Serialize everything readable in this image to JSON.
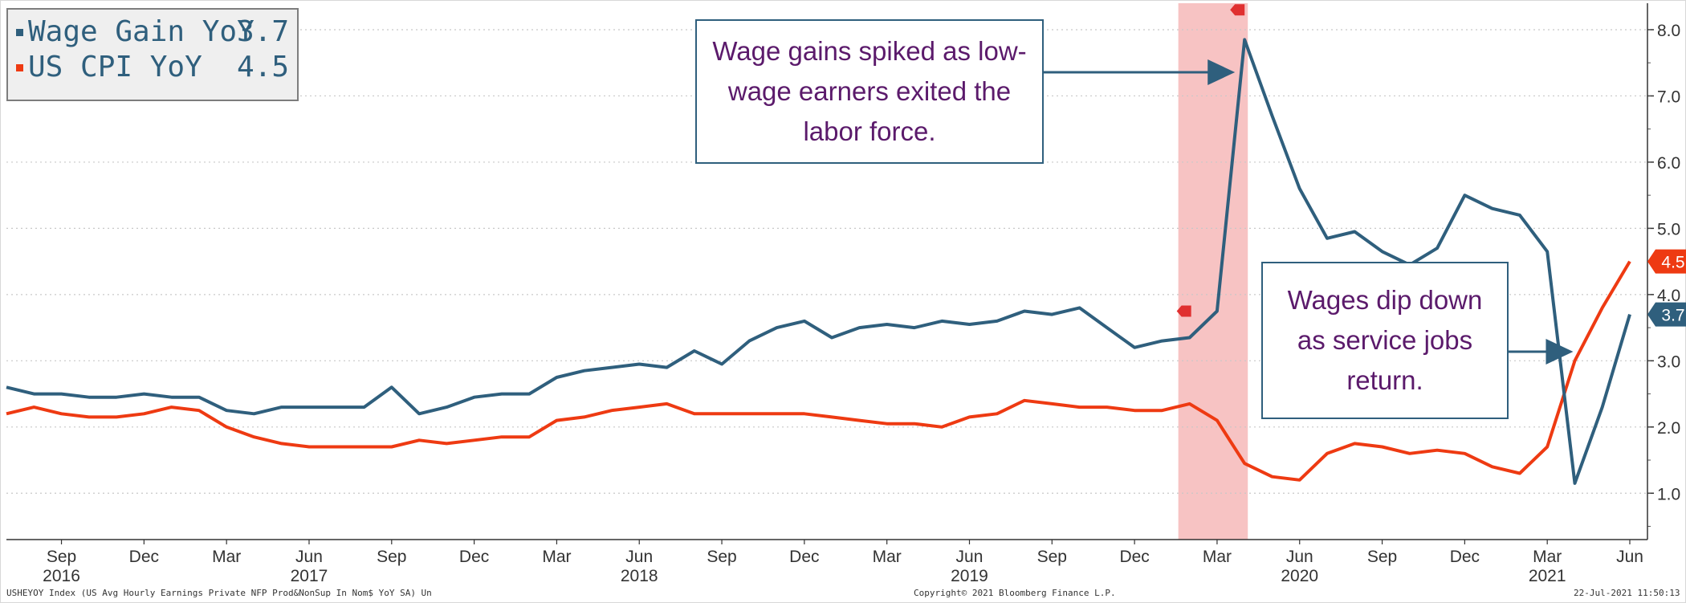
{
  "chart_data": {
    "type": "line",
    "legend": {
      "placement": "top-left",
      "entries": [
        {
          "label": "Wage Gain YoY",
          "value": "3.7",
          "color": "#2f5f7d"
        },
        {
          "label": "US CPI YoY",
          "value": "4.5",
          "color": "#ee3a12"
        }
      ]
    },
    "ylim": [
      0.3,
      8.4
    ],
    "y_ticks": [
      1.0,
      2.0,
      3.0,
      4.0,
      5.0,
      6.0,
      7.0,
      8.0
    ],
    "y_tick_labels": [
      "1.0",
      "2.0",
      "3.0",
      "4.0",
      "5.0",
      "6.0",
      "7.0",
      "8.0"
    ],
    "grid": true,
    "x_start": "2016-07",
    "x_end": "2021-06",
    "x_ticks": [
      {
        "date": "2016-09",
        "label": "Sep"
      },
      {
        "date": "2016-12",
        "label": "Dec"
      },
      {
        "date": "2017-03",
        "label": "Mar"
      },
      {
        "date": "2017-06",
        "label": "Jun"
      },
      {
        "date": "2017-09",
        "label": "Sep"
      },
      {
        "date": "2017-12",
        "label": "Dec"
      },
      {
        "date": "2018-03",
        "label": "Mar"
      },
      {
        "date": "2018-06",
        "label": "Jun"
      },
      {
        "date": "2018-09",
        "label": "Sep"
      },
      {
        "date": "2018-12",
        "label": "Dec"
      },
      {
        "date": "2019-03",
        "label": "Mar"
      },
      {
        "date": "2019-06",
        "label": "Jun"
      },
      {
        "date": "2019-09",
        "label": "Sep"
      },
      {
        "date": "2019-12",
        "label": "Dec"
      },
      {
        "date": "2020-03",
        "label": "Mar"
      },
      {
        "date": "2020-06",
        "label": "Jun"
      },
      {
        "date": "2020-09",
        "label": "Sep"
      },
      {
        "date": "2020-12",
        "label": "Dec"
      },
      {
        "date": "2021-03",
        "label": "Mar"
      },
      {
        "date": "2021-06",
        "label": "Jun"
      }
    ],
    "year_labels": [
      {
        "date": "2016-09",
        "label": "2016"
      },
      {
        "date": "2017-06",
        "label": "2017"
      },
      {
        "date": "2018-06",
        "label": "2018"
      },
      {
        "date": "2019-06",
        "label": "2019"
      },
      {
        "date": "2020-06",
        "label": "2020"
      },
      {
        "date": "2021-03",
        "label": "2021"
      }
    ],
    "x": [
      "2016-07",
      "2016-08",
      "2016-09",
      "2016-10",
      "2016-11",
      "2016-12",
      "2017-01",
      "2017-02",
      "2017-03",
      "2017-04",
      "2017-05",
      "2017-06",
      "2017-07",
      "2017-08",
      "2017-09",
      "2017-10",
      "2017-11",
      "2017-12",
      "2018-01",
      "2018-02",
      "2018-03",
      "2018-04",
      "2018-05",
      "2018-06",
      "2018-07",
      "2018-08",
      "2018-09",
      "2018-10",
      "2018-11",
      "2018-12",
      "2019-01",
      "2019-02",
      "2019-03",
      "2019-04",
      "2019-05",
      "2019-06",
      "2019-07",
      "2019-08",
      "2019-09",
      "2019-10",
      "2019-11",
      "2019-12",
      "2020-01",
      "2020-02",
      "2020-03",
      "2020-04",
      "2020-05",
      "2020-06",
      "2020-07",
      "2020-08",
      "2020-09",
      "2020-10",
      "2020-11",
      "2020-12",
      "2021-01",
      "2021-02",
      "2021-03",
      "2021-04",
      "2021-05",
      "2021-06"
    ],
    "series": [
      {
        "name": "Wage Gain YoY",
        "color": "#2f5f7d",
        "values": [
          2.6,
          2.5,
          2.5,
          2.45,
          2.45,
          2.5,
          2.45,
          2.45,
          2.25,
          2.2,
          2.3,
          2.3,
          2.3,
          2.3,
          2.6,
          2.2,
          2.3,
          2.45,
          2.5,
          2.5,
          2.75,
          2.85,
          2.9,
          2.95,
          2.9,
          3.15,
          2.95,
          3.3,
          3.5,
          3.6,
          3.35,
          3.5,
          3.55,
          3.5,
          3.6,
          3.55,
          3.6,
          3.75,
          3.7,
          3.8,
          3.5,
          3.2,
          3.3,
          3.35,
          3.75,
          7.85,
          6.7,
          5.6,
          4.85,
          4.95,
          4.65,
          4.45,
          4.7,
          5.5,
          5.3,
          5.2,
          4.65,
          1.15,
          2.3,
          3.7
        ]
      },
      {
        "name": "US CPI YoY",
        "color": "#ee3a12",
        "values": [
          2.2,
          2.3,
          2.2,
          2.15,
          2.15,
          2.2,
          2.3,
          2.25,
          2.0,
          1.85,
          1.75,
          1.7,
          1.7,
          1.7,
          1.7,
          1.8,
          1.75,
          1.8,
          1.85,
          1.85,
          2.1,
          2.15,
          2.25,
          2.3,
          2.35,
          2.2,
          2.2,
          2.2,
          2.2,
          2.2,
          2.15,
          2.1,
          2.05,
          2.05,
          2.0,
          2.15,
          2.2,
          2.4,
          2.35,
          2.3,
          2.3,
          2.25,
          2.25,
          2.35,
          2.1,
          1.45,
          1.25,
          1.2,
          1.6,
          1.75,
          1.7,
          1.6,
          1.65,
          1.6,
          1.4,
          1.3,
          1.7,
          3.0,
          3.8,
          4.5
        ]
      }
    ],
    "shaded_period": {
      "start": "2020-02",
      "end": "2020-04"
    },
    "last_value_tags": [
      {
        "series": "US CPI YoY",
        "label": "4.5",
        "color": "#ee3a12"
      },
      {
        "series": "Wage Gain YoY",
        "label": "3.7",
        "color": "#2f5f7d"
      }
    ],
    "annotations": [
      {
        "lines": [
          "Wage gains spiked as low-",
          "wage earners exited the",
          "labor force."
        ],
        "arrow_to": "2020-04"
      },
      {
        "lines": [
          "Wages dip down",
          "as service jobs",
          "return."
        ],
        "arrow_to": "2021-04"
      }
    ]
  },
  "footer": {
    "source": "USHEYOY Index (US Avg Hourly Earnings Private NFP Prod&NonSup In Nom$ YoY SA) Un",
    "copyright": "Copyright© 2021 Bloomberg Finance L.P.",
    "timestamp": "22-Jul-2021 11:50:13"
  }
}
